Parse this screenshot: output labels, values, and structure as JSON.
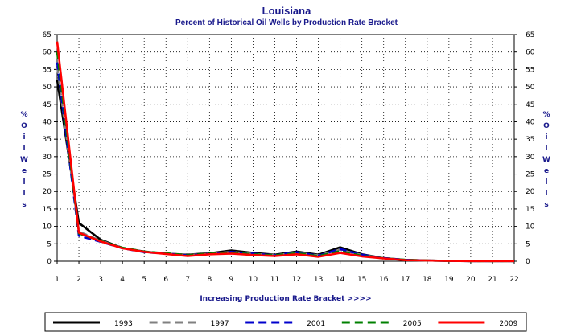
{
  "chart_data": {
    "type": "line",
    "title": "Louisiana",
    "subtitle": "Percent of Historical Oil Wells by Production Rate Bracket",
    "xlabel": "Increasing Production Rate Bracket >>>>",
    "ylabel": "% Oil Wells",
    "x": [
      1,
      2,
      3,
      4,
      5,
      6,
      7,
      8,
      9,
      10,
      11,
      12,
      13,
      14,
      15,
      16,
      17,
      18,
      19,
      20,
      21,
      22
    ],
    "xlim": [
      1,
      22
    ],
    "ylim": [
      0,
      65
    ],
    "yticks": [
      0,
      5,
      10,
      15,
      20,
      25,
      30,
      35,
      40,
      45,
      50,
      55,
      60,
      65
    ],
    "grid": true,
    "legend_position": "bottom",
    "series": [
      {
        "name": "1993",
        "color": "#000000",
        "dash": "solid",
        "values": [
          52,
          11,
          6.2,
          3.8,
          2.8,
          2.2,
          1.9,
          2.3,
          3.1,
          2.4,
          1.9,
          2.8,
          1.9,
          4.0,
          2.0,
          0.9,
          0.4,
          0.2,
          0.1,
          0.05,
          0.05,
          0.05
        ]
      },
      {
        "name": "1997",
        "color": "#808080",
        "dash": "dashed",
        "values": [
          56,
          8.5,
          5.9,
          3.8,
          2.7,
          2.2,
          1.8,
          2.2,
          2.7,
          2.1,
          1.8,
          2.4,
          1.7,
          3.3,
          1.8,
          0.9,
          0.4,
          0.2,
          0.1,
          0.05,
          0.05,
          0.05
        ]
      },
      {
        "name": "2001",
        "color": "#0000cc",
        "dash": "dashed",
        "values": [
          57,
          7.3,
          5.6,
          3.7,
          2.6,
          2.2,
          1.7,
          2.1,
          2.7,
          2.2,
          1.7,
          2.6,
          1.6,
          3.5,
          1.9,
          0.9,
          0.4,
          0.2,
          0.1,
          0.05,
          0.05,
          0.05
        ]
      },
      {
        "name": "2005",
        "color": "#008000",
        "dash": "dashed",
        "values": [
          60,
          8.0,
          5.8,
          3.9,
          2.8,
          2.3,
          1.7,
          2.2,
          2.5,
          2.0,
          1.7,
          2.3,
          1.5,
          2.9,
          1.6,
          0.8,
          0.4,
          0.2,
          0.1,
          0.05,
          0.05,
          0.05
        ]
      },
      {
        "name": "2009",
        "color": "#ff0000",
        "dash": "solid",
        "values": [
          63,
          8.2,
          5.7,
          3.7,
          2.7,
          2.1,
          1.5,
          2.0,
          2.2,
          1.8,
          1.5,
          2.0,
          1.3,
          2.4,
          1.4,
          0.8,
          0.3,
          0.2,
          0.1,
          0.05,
          0.05,
          0.05
        ]
      }
    ]
  }
}
